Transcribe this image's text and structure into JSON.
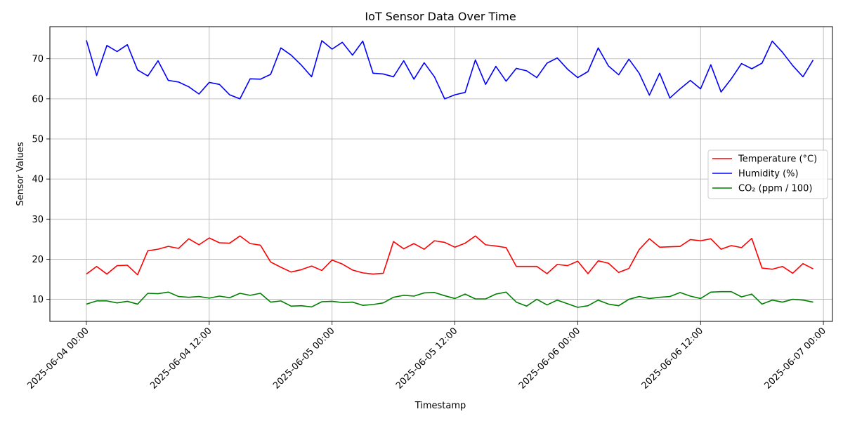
{
  "chart_data": {
    "type": "line",
    "title": "IoT Sensor Data Over Time",
    "xlabel": "Timestamp",
    "ylabel": "Sensor Values",
    "x_start": "2025-06-04 00:00",
    "x_step_hours": 1,
    "xlim": [
      "2025-06-03 20:26",
      "2025-06-07 00:53"
    ],
    "ylim": [
      4.5,
      78
    ],
    "x_ticks": [
      "2025-06-04 00:00",
      "2025-06-04 12:00",
      "2025-06-05 00:00",
      "2025-06-05 12:00",
      "2025-06-06 00:00",
      "2025-06-06 12:00",
      "2025-06-07 00:00"
    ],
    "y_ticks": [
      10,
      20,
      30,
      40,
      50,
      60,
      70
    ],
    "grid": true,
    "legend_position": "center-right",
    "series": [
      {
        "name": "Temperature (°C)",
        "color": "#ff0000",
        "values": [
          16.3,
          18.2,
          16.3,
          18.4,
          18.5,
          16.1,
          22.1,
          22.5,
          23.2,
          22.7,
          25.1,
          23.6,
          25.3,
          24.1,
          24.0,
          25.8,
          23.9,
          23.5,
          19.3,
          18.0,
          16.8,
          17.4,
          18.3,
          17.2,
          19.8,
          18.8,
          17.3,
          16.6,
          16.3,
          16.5,
          24.4,
          22.6,
          23.9,
          22.5,
          24.6,
          24.2,
          23.0,
          24.0,
          25.8,
          23.6,
          23.3,
          22.9,
          18.2,
          18.2,
          18.2,
          16.4,
          18.7,
          18.4,
          19.5,
          16.4,
          19.6,
          19.0,
          16.7,
          17.7,
          22.4,
          25.1,
          23.0,
          23.1,
          23.2,
          24.9,
          24.6,
          25.1,
          22.5,
          23.4,
          22.9,
          25.2,
          17.8,
          17.5,
          18.2,
          16.5,
          18.9,
          17.6
        ]
      },
      {
        "name": "Humidity (%)",
        "color": "#0000ff",
        "values": [
          74.6,
          65.8,
          73.3,
          71.8,
          73.5,
          67.2,
          65.7,
          69.5,
          64.6,
          64.2,
          63.0,
          61.2,
          64.1,
          63.6,
          61.0,
          60.0,
          65.0,
          64.9,
          66.1,
          72.7,
          70.9,
          68.4,
          65.5,
          74.5,
          72.4,
          74.1,
          70.9,
          74.4,
          66.4,
          66.2,
          65.5,
          69.5,
          64.9,
          69.0,
          65.5,
          60.0,
          61.0,
          61.6,
          69.7,
          63.6,
          68.1,
          64.4,
          67.6,
          67.0,
          65.3,
          68.9,
          70.2,
          67.4,
          65.3,
          66.8,
          72.7,
          68.2,
          66.0,
          69.9,
          66.4,
          60.9,
          66.4,
          60.2,
          62.5,
          64.6,
          62.5,
          68.5,
          61.7,
          65.0,
          68.8,
          67.5,
          68.9,
          74.4,
          71.6,
          68.3,
          65.5,
          69.7
        ]
      },
      {
        "name": "CO₂ (ppm / 100)",
        "color": "#008000",
        "values": [
          8.8,
          9.6,
          9.6,
          9.1,
          9.5,
          8.8,
          11.5,
          11.4,
          11.8,
          10.7,
          10.5,
          10.7,
          10.3,
          10.8,
          10.4,
          11.5,
          11.0,
          11.5,
          9.3,
          9.6,
          8.3,
          8.4,
          8.1,
          9.4,
          9.5,
          9.2,
          9.3,
          8.5,
          8.7,
          9.1,
          10.5,
          11.0,
          10.8,
          11.6,
          11.7,
          10.9,
          10.2,
          11.3,
          10.1,
          10.1,
          11.3,
          11.8,
          9.3,
          8.3,
          10.0,
          8.6,
          9.8,
          8.9,
          8.0,
          8.4,
          9.8,
          8.8,
          8.4,
          10.0,
          10.7,
          10.2,
          10.5,
          10.7,
          11.7,
          10.8,
          10.2,
          11.8,
          11.9,
          11.9,
          10.6,
          11.3,
          8.8,
          9.8,
          9.3,
          10.0,
          9.8,
          9.3
        ]
      }
    ]
  }
}
